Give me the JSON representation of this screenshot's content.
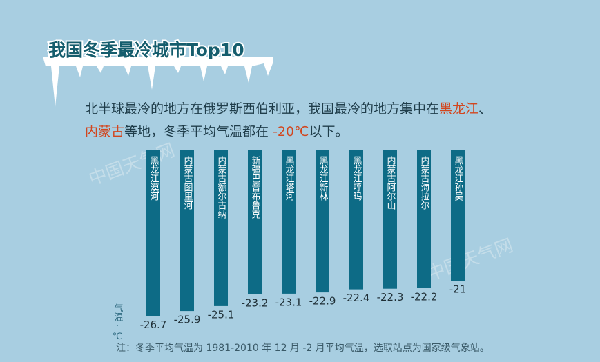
{
  "chart_data": {
    "type": "bar",
    "title": "我国冬季最冷城市Top10",
    "subtitle_lines": [
      [
        {
          "text": "北半球最冷的地方在俄罗斯西伯利亚，我国最冷的地方集中在",
          "color": "#1f3d4a"
        },
        {
          "text": "黑龙江",
          "color": "#d2461e"
        },
        {
          "text": "、",
          "color": "#1f3d4a"
        }
      ],
      [
        {
          "text": "内蒙古",
          "color": "#d2461e"
        },
        {
          "text": "等地，冬季平均气温都在 ",
          "color": "#1f3d4a"
        },
        {
          "text": "-20℃",
          "color": "#d2461e"
        },
        {
          "text": "以下。",
          "color": "#1f3d4a"
        }
      ]
    ],
    "categories": [
      "黑龙江漠河",
      "内蒙古图里河",
      "内蒙古额尔古纳",
      "新疆巴音布鲁克",
      "黑龙江塔河",
      "黑龙江新林",
      "黑龙江呼玛",
      "内蒙古阿尔山",
      "内蒙古海拉尔",
      "黑龙江孙吴"
    ],
    "values": [
      -26.7,
      -25.9,
      -25.1,
      -23.2,
      -23.1,
      -22.9,
      -22.4,
      -22.3,
      -22.2,
      -21
    ],
    "color": "#0d6b86",
    "ylim": [
      0,
      -28
    ],
    "y_label": "气温·℃",
    "note": "注：冬季平均气温为 1981-2010 年 12 月 -2 月平均气温，选取站点为国家级气象站。",
    "watermark": "中国天气网"
  }
}
